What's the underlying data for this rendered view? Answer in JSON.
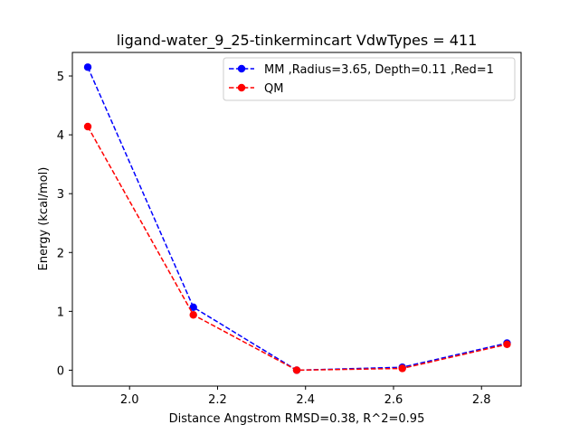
{
  "chart_data": {
    "type": "line",
    "title": "ligand-water_9_25-tinkermincart VdwTypes = 411",
    "xlabel": "Distance Angstrom RMSD=0.38, R^2=0.95",
    "ylabel": "Energy (kcal/mol)",
    "xlim": [
      1.87,
      2.89
    ],
    "ylim": [
      -0.27,
      5.4
    ],
    "xticks": [
      2.0,
      2.2,
      2.4,
      2.6,
      2.8
    ],
    "xtick_labels": [
      "2.0",
      "2.2",
      "2.4",
      "2.6",
      "2.8"
    ],
    "yticks": [
      0,
      1,
      2,
      3,
      4,
      5
    ],
    "ytick_labels": [
      "0",
      "1",
      "2",
      "3",
      "4",
      "5"
    ],
    "legend_position": "upper right",
    "grid": false,
    "series": [
      {
        "name": "MM ,Radius=3.65, Depth=0.11 ,Red=1",
        "color": "#0000ff",
        "linestyle": "dashed",
        "marker": "circle",
        "x": [
          1.905,
          2.145,
          2.38,
          2.62,
          2.858
        ],
        "y": [
          5.15,
          1.07,
          0.0,
          0.05,
          0.46
        ]
      },
      {
        "name": "QM",
        "color": "#ff0000",
        "linestyle": "dashed",
        "marker": "circle",
        "x": [
          1.905,
          2.145,
          2.38,
          2.62,
          2.858
        ],
        "y": [
          4.14,
          0.94,
          0.0,
          0.03,
          0.44
        ]
      }
    ]
  }
}
